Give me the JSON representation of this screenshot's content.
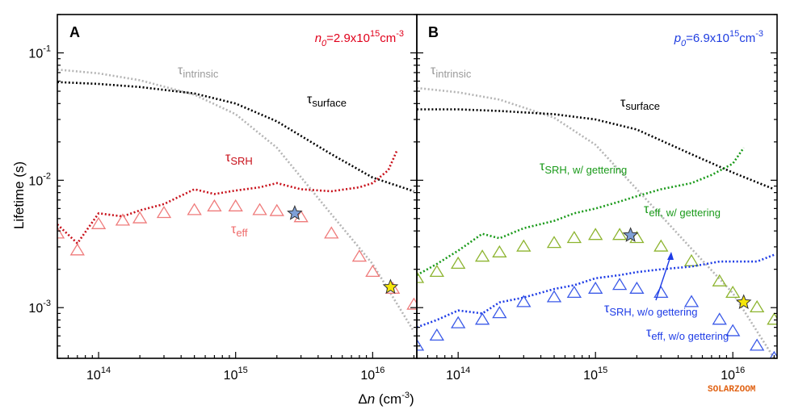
{
  "chart_data": [
    {
      "panel": "A",
      "type": "scatter",
      "x_scale": "log",
      "y_scale": "log",
      "xlim": [
        50000000000000.0,
        2.1e+16
      ],
      "ylim": [
        0.0004,
        0.2
      ],
      "corner_label": {
        "sym": "n",
        "sub": "0",
        "text": "=2.9x10",
        "exp": "15",
        "unit": "cm",
        "unit_exp": "-3",
        "color": "#e0001b"
      },
      "series": [
        {
          "name": "τ intrinsic",
          "style": "dotted",
          "color": "#b5b5b5",
          "x": [
            50000000000000.0,
            100000000000000.0,
            200000000000000.0,
            500000000000000.0,
            1000000000000000.0,
            2000000000000000.0,
            5000000000000000.0,
            1e+16,
            2e+16
          ],
          "y": [
            0.074,
            0.069,
            0.061,
            0.047,
            0.033,
            0.018,
            0.0054,
            0.0022,
            0.00065
          ]
        },
        {
          "name": "τ surface",
          "style": "dotted",
          "color": "#000000",
          "x": [
            50000000000000.0,
            100000000000000.0,
            200000000000000.0,
            500000000000000.0,
            1000000000000000.0,
            2000000000000000.0,
            5000000000000000.0,
            1e+16,
            2e+16
          ],
          "y": [
            0.059,
            0.057,
            0.054,
            0.048,
            0.04,
            0.029,
            0.016,
            0.0105,
            0.0082
          ]
        },
        {
          "name": "τ SRH",
          "style": "dotted",
          "color": "#c8101a",
          "x": [
            50000000000000.0,
            70000000000000.0,
            100000000000000.0,
            150000000000000.0,
            200000000000000.0,
            300000000000000.0,
            500000000000000.0,
            700000000000000.0,
            1000000000000000.0,
            1500000000000000.0,
            2000000000000000.0,
            3000000000000000.0,
            5000000000000000.0,
            8000000000000000.0,
            1e+16,
            1.3e+16,
            1.5e+16
          ],
          "y": [
            0.0045,
            0.0032,
            0.0055,
            0.0052,
            0.0058,
            0.0065,
            0.0085,
            0.0078,
            0.0083,
            0.0088,
            0.0095,
            0.0085,
            0.0082,
            0.0088,
            0.0095,
            0.012,
            0.017
          ]
        },
        {
          "name": "τ eff",
          "style": "triangles",
          "color": "#ef7b7b",
          "x": [
            50000000000000.0,
            70000000000000.0,
            100000000000000.0,
            150000000000000.0,
            200000000000000.0,
            300000000000000.0,
            500000000000000.0,
            700000000000000.0,
            1000000000000000.0,
            1500000000000000.0,
            2000000000000000.0,
            3000000000000000.0,
            5000000000000000.0,
            8000000000000000.0,
            1e+16,
            1.4e+16,
            2e+16
          ],
          "y": [
            0.0038,
            0.0028,
            0.0045,
            0.0048,
            0.005,
            0.0055,
            0.0058,
            0.0062,
            0.0062,
            0.0058,
            0.0057,
            0.0051,
            0.0038,
            0.0025,
            0.0019,
            0.0014,
            0.00105
          ]
        }
      ],
      "stars": [
        {
          "x": 2700000000000000.0,
          "y": 0.0055,
          "color": "#7e9fd6"
        },
        {
          "x": 1.35e+16,
          "y": 0.00145,
          "color": "#f6e60a"
        }
      ],
      "labels": [
        {
          "id": "intrinsic",
          "main": "τ",
          "sub": "intrinsic",
          "color": "#9a9a9a"
        },
        {
          "id": "surface",
          "main": "τ",
          "sub": "surface",
          "color": "#000000"
        },
        {
          "id": "srh",
          "main": "τ",
          "sub": "SRH",
          "color": "#c8101a"
        },
        {
          "id": "eff",
          "main": "τ",
          "sub": "eff",
          "color": "#ef6b6b"
        }
      ]
    },
    {
      "panel": "B",
      "type": "scatter",
      "x_scale": "log",
      "y_scale": "log",
      "xlim": [
        50000000000000.0,
        2.1e+16
      ],
      "ylim": [
        0.0004,
        0.2
      ],
      "corner_label": {
        "sym": "p",
        "sub": "0",
        "text": "=6.9x10",
        "exp": "15",
        "unit": "cm",
        "unit_exp": "-3",
        "color": "#1f3de0"
      },
      "series": [
        {
          "name": "τ intrinsic",
          "style": "dotted",
          "color": "#b5b5b5",
          "x": [
            50000000000000.0,
            100000000000000.0,
            200000000000000.0,
            500000000000000.0,
            1000000000000000.0,
            2000000000000000.0,
            5000000000000000.0,
            1e+16,
            2e+16
          ],
          "y": [
            0.053,
            0.049,
            0.043,
            0.031,
            0.019,
            0.0085,
            0.0029,
            0.0013,
            0.0004
          ]
        },
        {
          "name": "τ surface",
          "style": "dotted",
          "color": "#000000",
          "x": [
            50000000000000.0,
            100000000000000.0,
            200000000000000.0,
            500000000000000.0,
            1000000000000000.0,
            2000000000000000.0,
            5000000000000000.0,
            1e+16,
            2e+16
          ],
          "y": [
            0.036,
            0.036,
            0.035,
            0.033,
            0.03,
            0.025,
            0.016,
            0.0115,
            0.0085
          ]
        },
        {
          "name": "τ SRH, w/ gettering",
          "style": "dotted",
          "color": "#1a9a1a",
          "x": [
            50000000000000.0,
            70000000000000.0,
            100000000000000.0,
            150000000000000.0,
            200000000000000.0,
            300000000000000.0,
            500000000000000.0,
            700000000000000.0,
            1000000000000000.0,
            1500000000000000.0,
            2000000000000000.0,
            3000000000000000.0,
            5000000000000000.0,
            7000000000000000.0,
            1e+16,
            1.2e+16
          ],
          "y": [
            0.0018,
            0.0022,
            0.0028,
            0.0038,
            0.0035,
            0.0042,
            0.0048,
            0.0055,
            0.006,
            0.0068,
            0.0075,
            0.0085,
            0.0095,
            0.011,
            0.0135,
            0.018
          ]
        },
        {
          "name": "τ eff, w/ gettering",
          "style": "triangles",
          "color": "#8db42f",
          "x": [
            50000000000000.0,
            70000000000000.0,
            100000000000000.0,
            150000000000000.0,
            200000000000000.0,
            300000000000000.0,
            500000000000000.0,
            700000000000000.0,
            1000000000000000.0,
            1500000000000000.0,
            2000000000000000.0,
            3000000000000000.0,
            5000000000000000.0,
            8000000000000000.0,
            1e+16,
            1.5e+16,
            2e+16
          ],
          "y": [
            0.0017,
            0.0019,
            0.0022,
            0.0025,
            0.0027,
            0.003,
            0.0032,
            0.0035,
            0.0037,
            0.0037,
            0.0035,
            0.003,
            0.0023,
            0.0016,
            0.0013,
            0.001,
            0.0008
          ]
        },
        {
          "name": "τ SRH, w/o gettering",
          "style": "dotted",
          "color": "#1e3ce6",
          "x": [
            50000000000000.0,
            70000000000000.0,
            100000000000000.0,
            150000000000000.0,
            200000000000000.0,
            300000000000000.0,
            500000000000000.0,
            700000000000000.0,
            1000000000000000.0,
            1500000000000000.0,
            2000000000000000.0,
            3000000000000000.0,
            5000000000000000.0,
            8000000000000000.0,
            1e+16,
            1.5e+16,
            2e+16
          ],
          "y": [
            0.0007,
            0.0008,
            0.00095,
            0.0009,
            0.0011,
            0.0012,
            0.0014,
            0.0015,
            0.0017,
            0.0018,
            0.0019,
            0.002,
            0.0021,
            0.0023,
            0.0023,
            0.0023,
            0.0026
          ]
        },
        {
          "name": "τ eff, w/o gettering",
          "style": "triangles",
          "color": "#3b5ae8",
          "x": [
            50000000000000.0,
            70000000000000.0,
            100000000000000.0,
            150000000000000.0,
            200000000000000.0,
            300000000000000.0,
            500000000000000.0,
            700000000000000.0,
            1000000000000000.0,
            1500000000000000.0,
            2000000000000000.0,
            3000000000000000.0,
            5000000000000000.0,
            8000000000000000.0,
            1e+16,
            1.5e+16,
            2e+16
          ],
          "y": [
            0.0005,
            0.0006,
            0.00075,
            0.0008,
            0.0009,
            0.0011,
            0.0012,
            0.0013,
            0.0014,
            0.0015,
            0.0014,
            0.0013,
            0.0011,
            0.0008,
            0.00065,
            0.0005,
            0.0004
          ]
        }
      ],
      "stars": [
        {
          "x": 1800000000000000.0,
          "y": 0.0037,
          "color": "#7e9fd6"
        },
        {
          "x": 1.2e+16,
          "y": 0.0011,
          "color": "#f6e60a"
        }
      ],
      "labels": [
        {
          "id": "intrinsic",
          "main": "τ",
          "sub": "intrinsic",
          "color": "#9a9a9a"
        },
        {
          "id": "surface",
          "main": "τ",
          "sub": "surface",
          "color": "#000000"
        },
        {
          "id": "srh-w",
          "main": "τ",
          "sub": "SRH, w/ gettering",
          "color": "#1a9a1a"
        },
        {
          "id": "eff-w",
          "main": "τ",
          "sub": "eff, w/ gettering",
          "color": "#1a9a1a"
        },
        {
          "id": "srh-wo",
          "main": "τ",
          "sub": "SRH, w/o gettering",
          "color": "#1e3ce6"
        },
        {
          "id": "eff-wo",
          "main": "τ",
          "sub": "eff, w/o gettering",
          "color": "#1e3ce6"
        }
      ]
    }
  ],
  "axes": {
    "xlabel_sym": "Δ",
    "xlabel_var": "n",
    "xlabel_unit": " (cm",
    "xlabel_exp": "-3",
    "xlabel_close": ")",
    "ylabel": "Lifetime (s)",
    "x_ticks": [
      {
        "base": "10",
        "exp": "14",
        "value": 100000000000000.0
      },
      {
        "base": "10",
        "exp": "15",
        "value": 1000000000000000.0
      },
      {
        "base": "10",
        "exp": "16",
        "value": 1e+16
      }
    ],
    "y_ticks": [
      {
        "base": "10",
        "exp": "-1",
        "value": 0.1
      },
      {
        "base": "10",
        "exp": "-2",
        "value": 0.01
      },
      {
        "base": "10",
        "exp": "-3",
        "value": 0.001
      }
    ]
  },
  "watermark": {
    "text": "SOLARZOOM",
    "color": "#e06010"
  }
}
